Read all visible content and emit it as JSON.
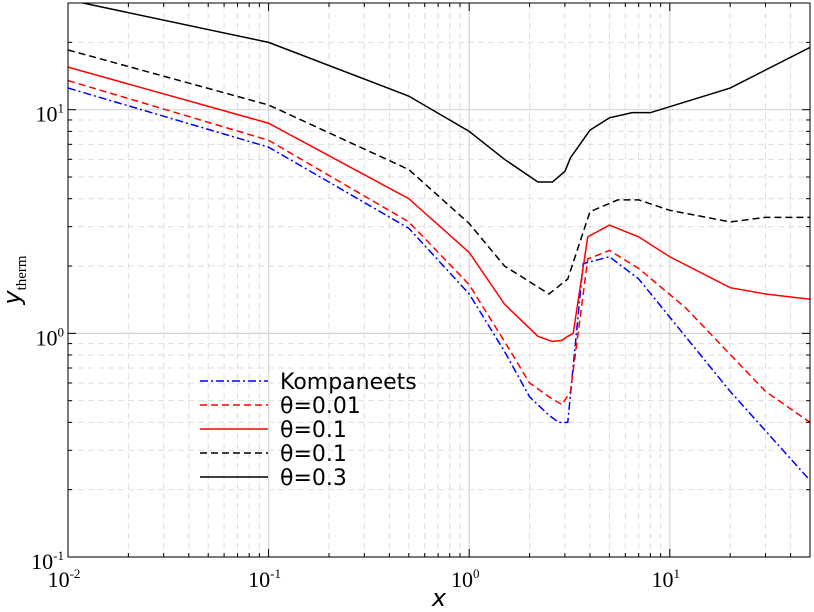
{
  "chart_data": {
    "type": "line",
    "title": "",
    "xlabel": "x",
    "ylabel": {
      "main": "y",
      "subscript": "therm"
    },
    "xscale": "log",
    "yscale": "log",
    "xlim": [
      0.01,
      50
    ],
    "ylim": [
      0.1,
      30
    ],
    "x_ticks": [
      {
        "value": 0.01,
        "base": "10",
        "exp": "-2"
      },
      {
        "value": 0.1,
        "base": "10",
        "exp": "-1"
      },
      {
        "value": 1,
        "base": "10",
        "exp": "0"
      },
      {
        "value": 10,
        "base": "10",
        "exp": "1"
      }
    ],
    "y_ticks": [
      {
        "value": 0.1,
        "base": "10",
        "exp": "-1"
      },
      {
        "value": 1,
        "base": "10",
        "exp": "0"
      },
      {
        "value": 10,
        "base": "10",
        "exp": "1"
      }
    ],
    "grid": true,
    "legend_position": "lower-left",
    "series": [
      {
        "name": "Kompaneets",
        "color": "#0000ff",
        "dash": "dashdot",
        "points": [
          [
            0.01,
            12.5
          ],
          [
            0.1,
            6.8
          ],
          [
            0.5,
            2.95
          ],
          [
            1.0,
            1.5
          ],
          [
            1.5,
            0.83
          ],
          [
            2.0,
            0.52
          ],
          [
            2.5,
            0.43
          ],
          [
            2.8,
            0.4
          ],
          [
            3.1,
            0.4
          ],
          [
            3.7,
            2.05
          ],
          [
            5.0,
            2.2
          ],
          [
            7.0,
            1.75
          ],
          [
            20,
            0.55
          ],
          [
            50,
            0.22
          ]
        ]
      },
      {
        "name": "θ=0.01",
        "color": "#ff0000",
        "dash": "dashed",
        "points": [
          [
            0.01,
            13.5
          ],
          [
            0.1,
            7.3
          ],
          [
            0.5,
            3.15
          ],
          [
            1.0,
            1.65
          ],
          [
            1.5,
            0.92
          ],
          [
            2.0,
            0.6
          ],
          [
            2.5,
            0.52
          ],
          [
            2.9,
            0.48
          ],
          [
            3.2,
            0.55
          ],
          [
            3.9,
            2.15
          ],
          [
            5.0,
            2.35
          ],
          [
            7.0,
            1.95
          ],
          [
            12,
            1.3
          ],
          [
            30,
            0.55
          ],
          [
            50,
            0.4
          ]
        ]
      },
      {
        "name": "θ=0.1",
        "color": "#ff0000",
        "dash": "solid",
        "points": [
          [
            0.01,
            15.5
          ],
          [
            0.1,
            8.7
          ],
          [
            0.5,
            4.0
          ],
          [
            1.0,
            2.3
          ],
          [
            1.5,
            1.35
          ],
          [
            2.2,
            0.97
          ],
          [
            2.6,
            0.92
          ],
          [
            2.9,
            0.93
          ],
          [
            3.1,
            0.97
          ],
          [
            3.3,
            1.0
          ],
          [
            3.9,
            2.7
          ],
          [
            5.0,
            3.05
          ],
          [
            7.0,
            2.7
          ],
          [
            10,
            2.2
          ],
          [
            20,
            1.6
          ],
          [
            30,
            1.5
          ],
          [
            50,
            1.42
          ]
        ]
      },
      {
        "name": "θ=0.1",
        "color": "#000000",
        "dash": "dashed",
        "points": [
          [
            0.01,
            18.5
          ],
          [
            0.1,
            10.5
          ],
          [
            0.5,
            5.4
          ],
          [
            1.0,
            3.1
          ],
          [
            1.5,
            2.0
          ],
          [
            2.5,
            1.5
          ],
          [
            3.1,
            1.75
          ],
          [
            4.0,
            3.5
          ],
          [
            5.5,
            3.95
          ],
          [
            7.0,
            3.95
          ],
          [
            10,
            3.55
          ],
          [
            20,
            3.15
          ],
          [
            30,
            3.3
          ],
          [
            50,
            3.3
          ]
        ]
      },
      {
        "name": "θ=0.3",
        "color": "#000000",
        "dash": "solid",
        "points": [
          [
            0.01,
            31
          ],
          [
            0.1,
            20
          ],
          [
            0.5,
            11.5
          ],
          [
            1.0,
            8.0
          ],
          [
            1.5,
            6.0
          ],
          [
            2.2,
            4.75
          ],
          [
            2.6,
            4.75
          ],
          [
            3.0,
            5.3
          ],
          [
            3.2,
            6.1
          ],
          [
            4.0,
            8.1
          ],
          [
            5.0,
            9.2
          ],
          [
            6.5,
            9.7
          ],
          [
            8.0,
            9.7
          ],
          [
            20,
            12.5
          ],
          [
            50,
            19
          ]
        ]
      }
    ]
  }
}
